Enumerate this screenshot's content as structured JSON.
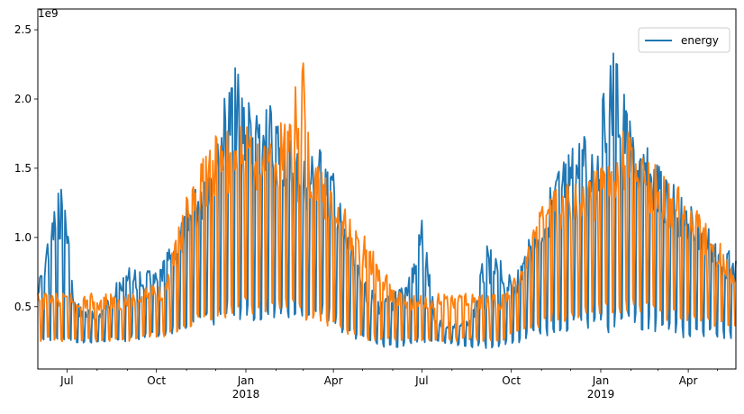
{
  "chart_data": {
    "type": "line",
    "title": "",
    "xlabel": "",
    "ylabel": "",
    "y_exponent_label": "1e9",
    "xlim": [
      "2017-06-01",
      "2019-05-20"
    ],
    "ylim": [
      0.05,
      2.65
    ],
    "y_ticks": [
      {
        "value": 0.5,
        "label": "0.5"
      },
      {
        "value": 1.0,
        "label": "1.0"
      },
      {
        "value": 1.5,
        "label": "1.5"
      },
      {
        "value": 2.0,
        "label": "2.0"
      },
      {
        "value": 2.5,
        "label": "2.5"
      }
    ],
    "x_ticks_major": [
      {
        "date": "2017-07-01",
        "label": "Jul",
        "sub": ""
      },
      {
        "date": "2017-10-01",
        "label": "Oct",
        "sub": ""
      },
      {
        "date": "2018-01-01",
        "label": "Jan",
        "sub": "2018"
      },
      {
        "date": "2018-04-01",
        "label": "Apr",
        "sub": ""
      },
      {
        "date": "2018-07-01",
        "label": "Jul",
        "sub": ""
      },
      {
        "date": "2018-10-01",
        "label": "Oct",
        "sub": ""
      },
      {
        "date": "2019-01-01",
        "label": "Jan",
        "sub": "2019"
      },
      {
        "date": "2019-04-01",
        "label": "Apr",
        "sub": ""
      }
    ],
    "x_ticks_minor": [
      "2017-08-01",
      "2017-09-01",
      "2017-11-01",
      "2017-12-01",
      "2018-02-01",
      "2018-03-01",
      "2018-05-01",
      "2018-06-01",
      "2018-08-01",
      "2018-09-01",
      "2018-11-01",
      "2018-12-01",
      "2019-02-01",
      "2019-03-01",
      "2019-05-01"
    ],
    "grid": false,
    "legend_position": "top-right",
    "series": [
      {
        "name": "energy",
        "color": "#1f77b4",
        "envelope": [
          {
            "date": "2017-06-01",
            "low": 0.27,
            "high": 0.65
          },
          {
            "date": "2017-06-10",
            "low": 0.25,
            "high": 1.0
          },
          {
            "date": "2017-06-20",
            "low": 0.25,
            "high": 1.3
          },
          {
            "date": "2017-06-28",
            "low": 0.24,
            "high": 1.45
          },
          {
            "date": "2017-07-08",
            "low": 0.23,
            "high": 0.55
          },
          {
            "date": "2017-08-01",
            "low": 0.24,
            "high": 0.45
          },
          {
            "date": "2017-09-01",
            "low": 0.25,
            "high": 0.8
          },
          {
            "date": "2017-10-01",
            "low": 0.28,
            "high": 0.75
          },
          {
            "date": "2017-11-01",
            "low": 0.33,
            "high": 1.2
          },
          {
            "date": "2017-11-20",
            "low": 0.35,
            "high": 1.6
          },
          {
            "date": "2017-12-20",
            "low": 0.38,
            "high": 2.25
          },
          {
            "date": "2018-01-01",
            "low": 0.37,
            "high": 2.1
          },
          {
            "date": "2018-01-15",
            "low": 0.4,
            "high": 2.0
          },
          {
            "date": "2018-02-01",
            "low": 0.42,
            "high": 1.95
          },
          {
            "date": "2018-03-01",
            "low": 0.4,
            "high": 1.6
          },
          {
            "date": "2018-03-25",
            "low": 0.4,
            "high": 1.7
          },
          {
            "date": "2018-04-10",
            "low": 0.3,
            "high": 1.2
          },
          {
            "date": "2018-05-01",
            "low": 0.25,
            "high": 0.7
          },
          {
            "date": "2018-05-20",
            "low": 0.21,
            "high": 0.55
          },
          {
            "date": "2018-06-10",
            "low": 0.2,
            "high": 0.65
          },
          {
            "date": "2018-06-25",
            "low": 0.21,
            "high": 0.9
          },
          {
            "date": "2018-07-01",
            "low": 0.22,
            "high": 1.2
          },
          {
            "date": "2018-07-15",
            "low": 0.25,
            "high": 0.4
          },
          {
            "date": "2018-08-20",
            "low": 0.2,
            "high": 0.4
          },
          {
            "date": "2018-09-05",
            "low": 0.2,
            "high": 0.95
          },
          {
            "date": "2018-09-25",
            "low": 0.21,
            "high": 0.8
          },
          {
            "date": "2018-10-01",
            "low": 0.21,
            "high": 0.7
          },
          {
            "date": "2018-10-20",
            "low": 0.26,
            "high": 1.0
          },
          {
            "date": "2018-11-15",
            "low": 0.3,
            "high": 1.5
          },
          {
            "date": "2018-12-10",
            "low": 0.33,
            "high": 1.75
          },
          {
            "date": "2019-01-01",
            "low": 0.3,
            "high": 1.8
          },
          {
            "date": "2019-01-08",
            "low": 0.3,
            "high": 2.5
          },
          {
            "date": "2019-01-20",
            "low": 0.32,
            "high": 2.3
          },
          {
            "date": "2019-02-01",
            "low": 0.33,
            "high": 1.8
          },
          {
            "date": "2019-03-01",
            "low": 0.3,
            "high": 1.55
          },
          {
            "date": "2019-04-01",
            "low": 0.27,
            "high": 1.3
          },
          {
            "date": "2019-05-01",
            "low": 0.27,
            "high": 1.0
          },
          {
            "date": "2019-05-20",
            "low": 0.27,
            "high": 0.85
          }
        ]
      },
      {
        "color": "#ff7f0e",
        "envelope": [
          {
            "date": "2017-06-01",
            "low": 0.25,
            "high": 0.6
          },
          {
            "date": "2017-09-01",
            "low": 0.25,
            "high": 0.6
          },
          {
            "date": "2017-10-10",
            "low": 0.28,
            "high": 0.7
          },
          {
            "date": "2017-11-01",
            "low": 0.35,
            "high": 1.3
          },
          {
            "date": "2017-12-01",
            "low": 0.4,
            "high": 1.8
          },
          {
            "date": "2018-01-01",
            "low": 0.45,
            "high": 1.8
          },
          {
            "date": "2018-02-01",
            "low": 0.45,
            "high": 1.8
          },
          {
            "date": "2018-03-01",
            "low": 0.4,
            "high": 2.3
          },
          {
            "date": "2018-03-10",
            "low": 0.4,
            "high": 1.6
          },
          {
            "date": "2018-04-15",
            "low": 0.3,
            "high": 1.2
          },
          {
            "date": "2018-05-10",
            "low": 0.25,
            "high": 0.95
          },
          {
            "date": "2018-06-01",
            "low": 0.25,
            "high": 0.65
          },
          {
            "date": "2018-06-15",
            "low": 0.25,
            "high": 0.6
          },
          {
            "date": "2018-09-20",
            "low": 0.25,
            "high": 0.6
          },
          {
            "date": "2018-10-10",
            "low": 0.3,
            "high": 0.75
          },
          {
            "date": "2018-11-01",
            "low": 0.35,
            "high": 1.3
          },
          {
            "date": "2018-12-01",
            "low": 0.4,
            "high": 1.4
          },
          {
            "date": "2019-01-01",
            "low": 0.45,
            "high": 1.5
          },
          {
            "date": "2019-01-25",
            "low": 0.45,
            "high": 1.8
          },
          {
            "date": "2019-03-01",
            "low": 0.4,
            "high": 1.5
          },
          {
            "date": "2019-04-01",
            "low": 0.4,
            "high": 1.3
          },
          {
            "date": "2019-05-01",
            "low": 0.35,
            "high": 1.0
          },
          {
            "date": "2019-05-20",
            "low": 0.35,
            "high": 0.8
          }
        ]
      }
    ]
  }
}
